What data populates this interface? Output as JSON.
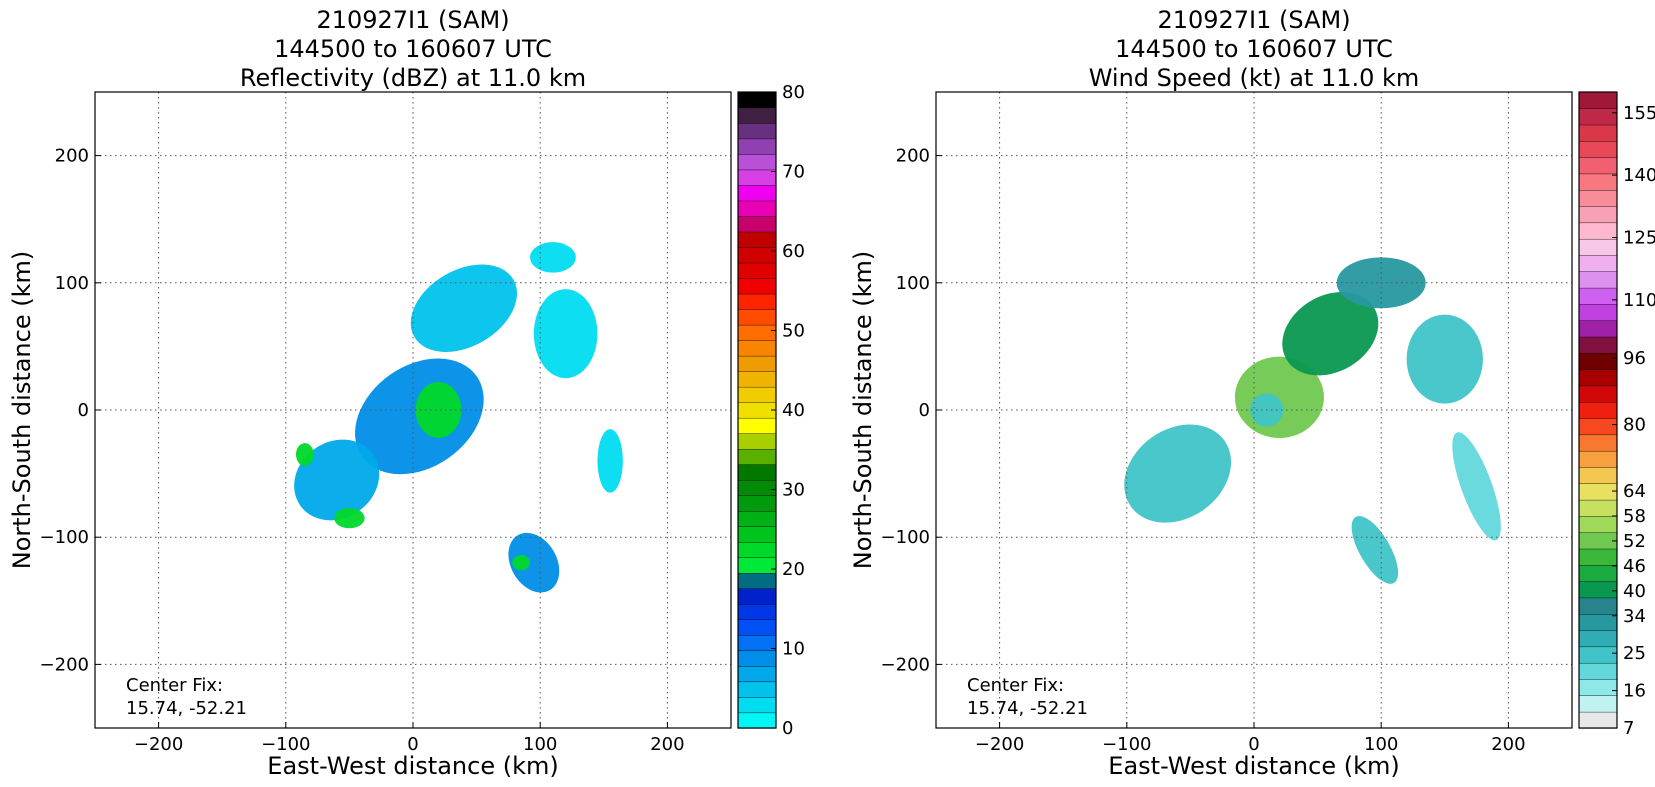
{
  "chart_data": [
    {
      "type": "heatmap",
      "title_lines": [
        "210927I1 (SAM)",
        "144500 to 160607 UTC",
        "Reflectivity (dBZ) at 11.0 km"
      ],
      "xlabel": "East-West distance (km)",
      "ylabel": "North-South distance (km)",
      "xlim": [
        -250,
        250
      ],
      "ylim": [
        -250,
        250
      ],
      "x_ticks": [
        -200,
        -100,
        0,
        100,
        200
      ],
      "y_ticks": [
        -200,
        -100,
        0,
        100,
        200
      ],
      "grid": true,
      "annotation_lines": [
        "Center Fix:",
        "15.74, -52.21"
      ],
      "colorbar": {
        "min": 0,
        "max": 80,
        "tick_values": [
          0,
          10,
          20,
          30,
          40,
          50,
          60,
          70,
          80
        ],
        "tick_labels": [
          "0",
          "10",
          "20",
          "30",
          "40",
          "50",
          "60",
          "70",
          "80"
        ],
        "colors": [
          "#00f5f5",
          "#00dcf0",
          "#00c2ec",
          "#00a8ea",
          "#008ee8",
          "#0470f2",
          "#0050f6",
          "#0038e8",
          "#0022cc",
          "#006e80",
          "#00e838",
          "#00d82a",
          "#00c41c",
          "#00b014",
          "#009a0c",
          "#008a06",
          "#007800",
          "#5ab000",
          "#a8d000",
          "#ffff00",
          "#f0e000",
          "#f0cc00",
          "#f0b400",
          "#f09c00",
          "#f88400",
          "#ff6c00",
          "#ff4c00",
          "#ff2400",
          "#f00000",
          "#e00000",
          "#d00000",
          "#c00000",
          "#c8006c",
          "#e800b4",
          "#f000f0",
          "#d640e6",
          "#b850d8",
          "#9040b0",
          "#683080",
          "#402040",
          "#000000"
        ]
      },
      "field": "reflectivity",
      "regions": [
        {
          "x": 5,
          "y": -5,
          "rx": 55,
          "ry": 40,
          "angle": 35,
          "value": 8
        },
        {
          "x": -60,
          "y": -55,
          "rx": 35,
          "ry": 30,
          "angle": 35,
          "value": 7
        },
        {
          "x": 40,
          "y": 80,
          "rx": 45,
          "ry": 30,
          "angle": 30,
          "value": 4
        },
        {
          "x": 120,
          "y": 60,
          "rx": 25,
          "ry": 35,
          "angle": 0,
          "value": 3
        },
        {
          "x": 110,
          "y": 120,
          "rx": 18,
          "ry": 12,
          "angle": 0,
          "value": 3
        },
        {
          "x": 20,
          "y": 0,
          "rx": 18,
          "ry": 22,
          "angle": 0,
          "value": 22
        },
        {
          "x": -50,
          "y": -85,
          "rx": 12,
          "ry": 8,
          "angle": 0,
          "value": 22
        },
        {
          "x": -85,
          "y": -35,
          "rx": 7,
          "ry": 9,
          "angle": 0,
          "value": 22
        },
        {
          "x": 95,
          "y": -120,
          "rx": 18,
          "ry": 25,
          "angle": 30,
          "value": 9
        },
        {
          "x": 155,
          "y": -40,
          "rx": 10,
          "ry": 25,
          "angle": 0,
          "value": 3
        },
        {
          "x": 85,
          "y": -120,
          "rx": 7,
          "ry": 6,
          "angle": 0,
          "value": 22
        }
      ]
    },
    {
      "type": "heatmap",
      "title_lines": [
        "210927I1 (SAM)",
        "144500 to 160607 UTC",
        "Wind Speed (kt) at 11.0 km"
      ],
      "xlabel": "East-West distance (km)",
      "ylabel": "North-South distance (km)",
      "xlim": [
        -250,
        250
      ],
      "ylim": [
        -250,
        250
      ],
      "x_ticks": [
        -200,
        -100,
        0,
        100,
        200
      ],
      "y_ticks": [
        -200,
        -100,
        0,
        100,
        200
      ],
      "grid": true,
      "annotation_lines": [
        "Center Fix:",
        "15.74, -52.21"
      ],
      "colorbar": {
        "min": 7,
        "max": 160,
        "tick_values": [
          7,
          16,
          25,
          34,
          40,
          46,
          52,
          58,
          64,
          80,
          96,
          110,
          125,
          140,
          155
        ],
        "tick_labels": [
          "7",
          "16",
          "25",
          "34",
          "40",
          "46",
          "52",
          "58",
          "64",
          "80",
          "96",
          "110",
          "125",
          "140",
          "155"
        ],
        "colors": [
          "#e8e8e8",
          "#c0f2f2",
          "#8ee8e8",
          "#62d8dc",
          "#40c4c8",
          "#30acb4",
          "#2898a0",
          "#28848c",
          "#0a9850",
          "#1aaa40",
          "#3ab83a",
          "#70c850",
          "#a0d85a",
          "#c8e060",
          "#e8e060",
          "#f4c850",
          "#f8a040",
          "#f87830",
          "#f84820",
          "#f02010",
          "#d00808",
          "#a80000",
          "#700000",
          "#801040",
          "#a020a8",
          "#c040e0",
          "#d060f0",
          "#dc90f0",
          "#f0b0f0",
          "#f8c8e8",
          "#ffb8d0",
          "#f8a0b4",
          "#f88c98",
          "#f87880",
          "#f06070",
          "#e84858",
          "#d83848",
          "#c02848",
          "#a01838"
        ]
      },
      "field": "wind",
      "regions": [
        {
          "x": -60,
          "y": -50,
          "rx": 45,
          "ry": 35,
          "angle": 35,
          "value": 24
        },
        {
          "x": 20,
          "y": 10,
          "rx": 35,
          "ry": 32,
          "angle": 0,
          "value": 52
        },
        {
          "x": 60,
          "y": 60,
          "rx": 40,
          "ry": 30,
          "angle": 30,
          "value": 40
        },
        {
          "x": 100,
          "y": 100,
          "rx": 35,
          "ry": 20,
          "angle": 0,
          "value": 34
        },
        {
          "x": 150,
          "y": 40,
          "rx": 30,
          "ry": 35,
          "angle": 0,
          "value": 24
        },
        {
          "x": 175,
          "y": -60,
          "rx": 12,
          "ry": 45,
          "angle": 20,
          "value": 22
        },
        {
          "x": 95,
          "y": -110,
          "rx": 12,
          "ry": 30,
          "angle": 30,
          "value": 26
        },
        {
          "x": 10,
          "y": 0,
          "rx": 13,
          "ry": 13,
          "angle": 0,
          "value": 24
        }
      ]
    }
  ]
}
